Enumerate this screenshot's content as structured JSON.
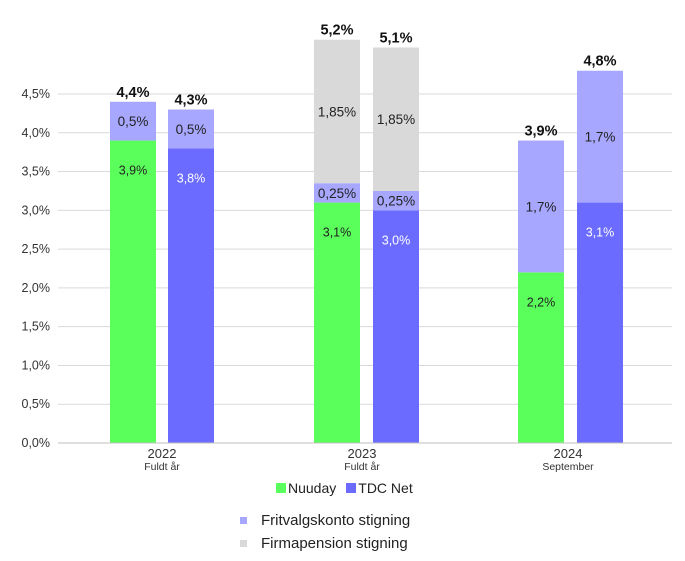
{
  "chart_data": {
    "type": "bar",
    "stacked": true,
    "ylim": [
      0,
      4.5
    ],
    "yticks": [
      "0,0%",
      "0,5%",
      "1,0%",
      "1,5%",
      "2,0%",
      "2,5%",
      "3,0%",
      "3,5%",
      "4,0%",
      "4,5%"
    ],
    "grid": true,
    "groups": [
      {
        "year": "2022",
        "sub": "Fuldt år",
        "bars": [
          {
            "company": "Nuuday",
            "total_label": "4,4%",
            "segments": [
              {
                "kind": "base",
                "value": 3.9,
                "label": "3,9%"
              },
              {
                "kind": "fritvalg",
                "value": 0.5,
                "label": "0,5%"
              }
            ]
          },
          {
            "company": "TDC Net",
            "total_label": "4,3%",
            "segments": [
              {
                "kind": "base",
                "value": 3.8,
                "label": "3,8%"
              },
              {
                "kind": "fritvalg",
                "value": 0.5,
                "label": "0,5%"
              }
            ]
          }
        ]
      },
      {
        "year": "2023",
        "sub": "Fuldt år",
        "bars": [
          {
            "company": "Nuuday",
            "total_label": "5,2%",
            "segments": [
              {
                "kind": "base",
                "value": 3.1,
                "label": "3,1%"
              },
              {
                "kind": "fritvalg",
                "value": 0.25,
                "label": "0,25%"
              },
              {
                "kind": "firmapension",
                "value": 1.85,
                "label": "1,85%"
              }
            ]
          },
          {
            "company": "TDC Net",
            "total_label": "5,1%",
            "segments": [
              {
                "kind": "base",
                "value": 3.0,
                "label": "3,0%"
              },
              {
                "kind": "fritvalg",
                "value": 0.25,
                "label": "0,25%"
              },
              {
                "kind": "firmapension",
                "value": 1.85,
                "label": "1,85%"
              }
            ]
          }
        ]
      },
      {
        "year": "2024",
        "sub": "September",
        "bars": [
          {
            "company": "Nuuday",
            "total_label": "3,9%",
            "segments": [
              {
                "kind": "base",
                "value": 2.2,
                "label": "2,2%"
              },
              {
                "kind": "fritvalg",
                "value": 1.7,
                "label": "1,7%"
              }
            ]
          },
          {
            "company": "TDC Net",
            "total_label": "4,8%",
            "segments": [
              {
                "kind": "base",
                "value": 3.1,
                "label": "3,1%"
              },
              {
                "kind": "fritvalg",
                "value": 1.7,
                "label": "1,7%"
              }
            ]
          }
        ]
      }
    ],
    "legend": {
      "nuuday": "Nuuday",
      "tdc": "TDC Net",
      "fritvalg": "Fritvalgskonto stigning",
      "firmapension": "Firmapension stigning"
    },
    "colors": {
      "nuuday": "#5bff5b",
      "tdc": "#6b6bff",
      "fritvalg": "#a7a7ff",
      "firmapension": "#d9d9d9",
      "grid": "#d9d9d9",
      "text": "#333333"
    }
  }
}
